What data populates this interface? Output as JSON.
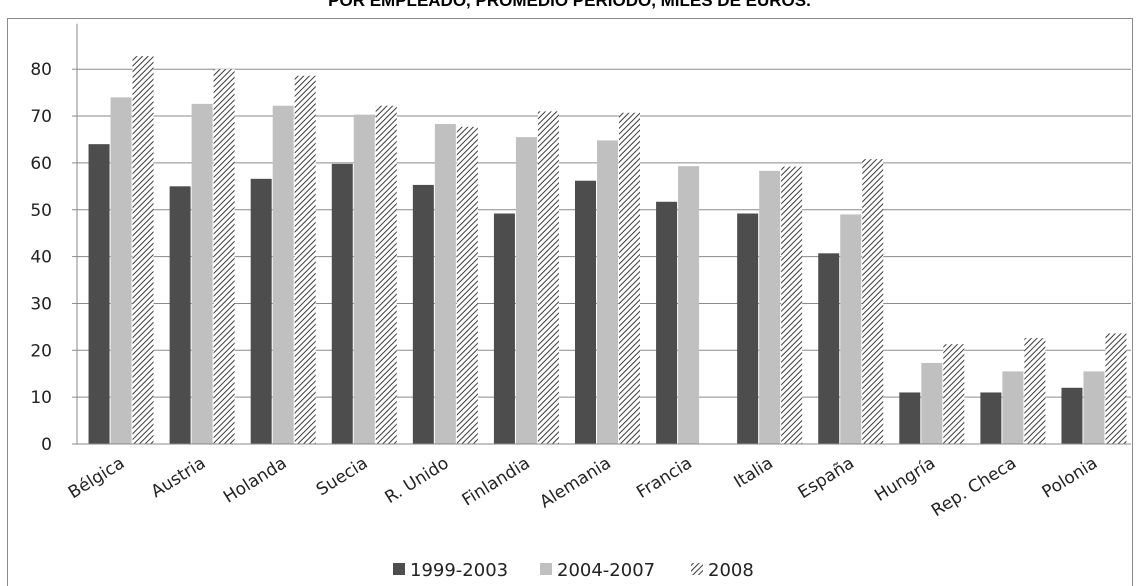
{
  "chart_data": {
    "type": "bar",
    "title": "POR EMPLEADO, PROMEDIO PERIODO, MILES DE EUROS.",
    "xlabel": "",
    "ylabel": "",
    "ylim": [
      0,
      85
    ],
    "yticks": [
      0,
      10,
      20,
      30,
      40,
      50,
      60,
      70,
      80
    ],
    "grid": true,
    "legend_position": "bottom",
    "categories": [
      "Bélgica",
      "Austria",
      "Holanda",
      "Suecia",
      "R. Unido",
      "Finlandia",
      "Alemania",
      "Francia",
      "Italia",
      "España",
      "Hungría",
      "Rep. Checa",
      "Polonia"
    ],
    "series": [
      {
        "name": "1999-2003",
        "color": "#4d4d4d",
        "pattern": "solid",
        "values": [
          64,
          55,
          56.6,
          59.8,
          55.3,
          49.2,
          56.2,
          51.7,
          49.2,
          40.7,
          11,
          11,
          12
        ]
      },
      {
        "name": "2004-2007",
        "color": "#c0c0c0",
        "pattern": "solid",
        "values": [
          74,
          72.6,
          72.2,
          70.3,
          68.3,
          65.5,
          64.8,
          59.3,
          58.3,
          49,
          17.3,
          15.5,
          15.5
        ]
      },
      {
        "name": "2008",
        "color": "#404040",
        "pattern": "diagonal-hatch",
        "values": [
          82.8,
          80,
          78.6,
          72.2,
          67.7,
          71,
          70.7,
          null,
          59.2,
          60.8,
          21.3,
          22.6,
          23.6
        ]
      }
    ]
  }
}
